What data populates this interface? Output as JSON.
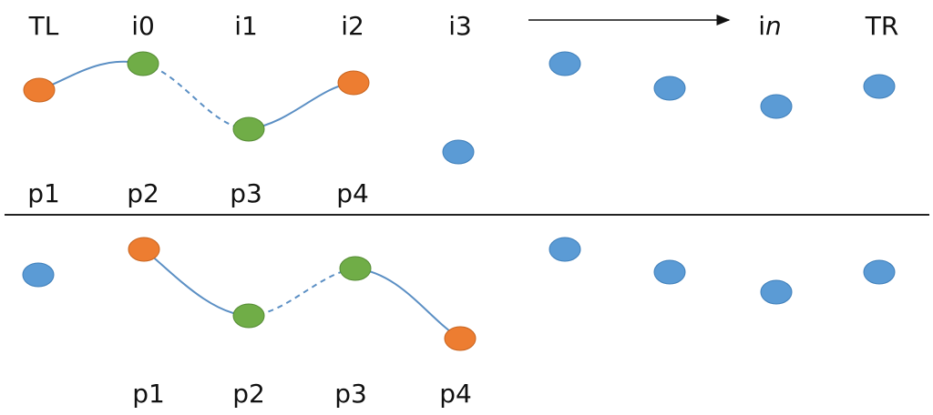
{
  "top": {
    "columns": [
      "TL",
      "i0",
      "i1",
      "i2",
      "i3"
    ],
    "last_column": {
      "prefix": "i",
      "italic": "n"
    },
    "right_column": "TR",
    "points": [
      "p1",
      "p2",
      "p3",
      "p4"
    ]
  },
  "bottom": {
    "points": [
      "p1",
      "p2",
      "p3",
      "p4"
    ]
  }
}
